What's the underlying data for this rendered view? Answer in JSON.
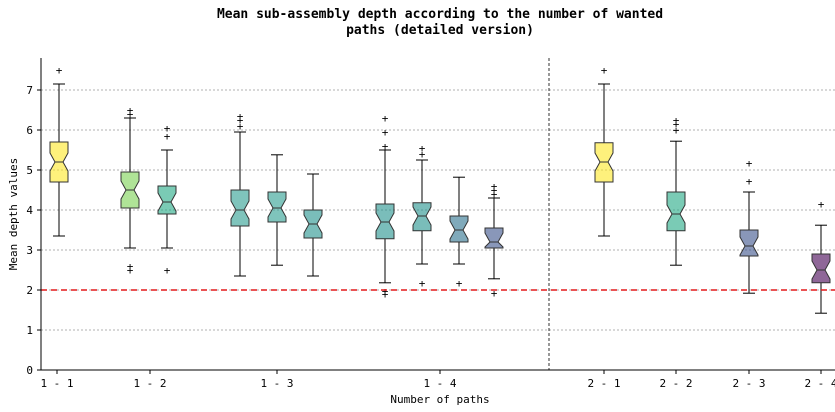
{
  "chart_data": {
    "type": "box",
    "title_line1": "Mean sub-assembly depth according to the number of wanted",
    "title_line2": "paths (detailed version)",
    "xlabel": "Number of paths",
    "ylabel": "Mean depth values",
    "ylim": [
      0,
      7.8
    ],
    "yticks": [
      0,
      1,
      2,
      3,
      4,
      5,
      6,
      7
    ],
    "grid": "horizontal dotted",
    "reference_line": {
      "y": 2,
      "color": "#e31a1c",
      "style": "dashed"
    },
    "separator": "vertical dashed line between the 1-path and 2-path groups",
    "group_labels": [
      "1 - 1",
      "1 - 2",
      "1 - 3",
      "1 - 4",
      "2 - 1",
      "2 - 2",
      "2 - 3",
      "2 - 4"
    ],
    "boxes": [
      {
        "group": "1 - 1",
        "color": "#fde725",
        "whisker_low": 3.35,
        "q1": 4.7,
        "median": 5.2,
        "q3": 5.7,
        "whisker_high": 7.15,
        "outliers": [
          7.5
        ]
      },
      {
        "group": "1 - 2",
        "color": "#7ad151",
        "whisker_low": 3.05,
        "q1": 4.05,
        "median": 4.5,
        "q3": 4.95,
        "whisker_high": 6.3,
        "outliers": [
          2.5,
          2.6,
          6.4,
          6.5
        ]
      },
      {
        "group": "1 - 2",
        "color": "#22a884",
        "whisker_low": 3.05,
        "q1": 3.9,
        "median": 4.2,
        "q3": 4.6,
        "whisker_high": 5.5,
        "outliers": [
          2.5,
          5.85,
          6.05
        ]
      },
      {
        "group": "1 - 3",
        "color": "#2a9d8f",
        "whisker_low": 2.35,
        "q1": 3.6,
        "median": 4.0,
        "q3": 4.5,
        "whisker_high": 5.95,
        "outliers": [
          6.1,
          6.25,
          6.35
        ]
      },
      {
        "group": "1 - 3",
        "color": "#2a9d8f",
        "whisker_low": 2.62,
        "q1": 3.7,
        "median": 4.05,
        "q3": 4.45,
        "whisker_high": 5.38,
        "outliers": []
      },
      {
        "group": "1 - 3",
        "color": "#21918c",
        "whisker_low": 2.35,
        "q1": 3.3,
        "median": 3.65,
        "q3": 4.0,
        "whisker_high": 4.9,
        "outliers": []
      },
      {
        "group": "1 - 4",
        "color": "#21918c",
        "whisker_low": 2.18,
        "q1": 3.28,
        "median": 3.7,
        "q3": 4.15,
        "whisker_high": 5.5,
        "outliers": [
          1.9,
          1.97,
          5.6,
          5.95,
          6.3
        ]
      },
      {
        "group": "1 - 4",
        "color": "#21918c",
        "whisker_low": 2.65,
        "q1": 3.48,
        "median": 3.85,
        "q3": 4.18,
        "whisker_high": 5.25,
        "outliers": [
          2.18,
          5.4,
          5.55
        ]
      },
      {
        "group": "1 - 4",
        "color": "#2c728e",
        "whisker_low": 2.65,
        "q1": 3.2,
        "median": 3.5,
        "q3": 3.85,
        "whisker_high": 4.82,
        "outliers": [
          2.18
        ]
      },
      {
        "group": "1 - 4",
        "color": "#3b528b",
        "whisker_low": 2.28,
        "q1": 3.05,
        "median": 3.2,
        "q3": 3.55,
        "whisker_high": 4.3,
        "outliers": [
          1.92,
          4.4,
          4.5,
          4.6
        ]
      },
      {
        "group": "2 - 1",
        "color": "#fde725",
        "whisker_low": 3.35,
        "q1": 4.7,
        "median": 5.2,
        "q3": 5.68,
        "whisker_high": 7.15,
        "outliers": [
          7.5
        ]
      },
      {
        "group": "2 - 2",
        "color": "#22a884",
        "whisker_low": 2.62,
        "q1": 3.48,
        "median": 3.9,
        "q3": 4.45,
        "whisker_high": 5.72,
        "outliers": [
          6.0,
          6.15,
          6.25
        ]
      },
      {
        "group": "2 - 3",
        "color": "#3b528b",
        "whisker_low": 1.92,
        "q1": 2.85,
        "median": 3.1,
        "q3": 3.5,
        "whisker_high": 4.45,
        "outliers": [
          4.72,
          5.18
        ]
      },
      {
        "group": "2 - 4",
        "color": "#440154",
        "whisker_low": 1.42,
        "q1": 2.18,
        "median": 2.5,
        "q3": 2.9,
        "whisker_high": 3.62,
        "outliers": [
          4.15
        ]
      }
    ]
  }
}
